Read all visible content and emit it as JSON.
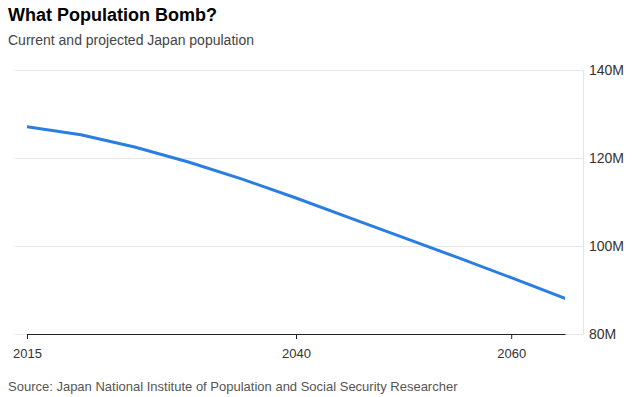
{
  "chart_data": {
    "type": "line",
    "title": "What Population Bomb?",
    "subtitle": "Current and projected Japan population",
    "source": "Source: Japan National Institute of Population and Social Security Researcher",
    "x": [
      2015,
      2020,
      2025,
      2030,
      2035,
      2040,
      2045,
      2050,
      2055,
      2060,
      2065
    ],
    "values": [
      127.1,
      125.3,
      122.5,
      119.1,
      115.2,
      110.9,
      106.4,
      101.9,
      97.4,
      92.8,
      88.1
    ],
    "color": "#2a7de1",
    "xlim": [
      2015,
      2065
    ],
    "xticks": [
      2015,
      2040,
      2060
    ],
    "ylim": [
      80,
      140
    ],
    "yticks": [
      {
        "value": 80,
        "label": "80M"
      },
      {
        "value": 100,
        "label": "100M"
      },
      {
        "value": 120,
        "label": "120M"
      },
      {
        "value": 140,
        "label": "140M"
      }
    ],
    "grid": true
  }
}
